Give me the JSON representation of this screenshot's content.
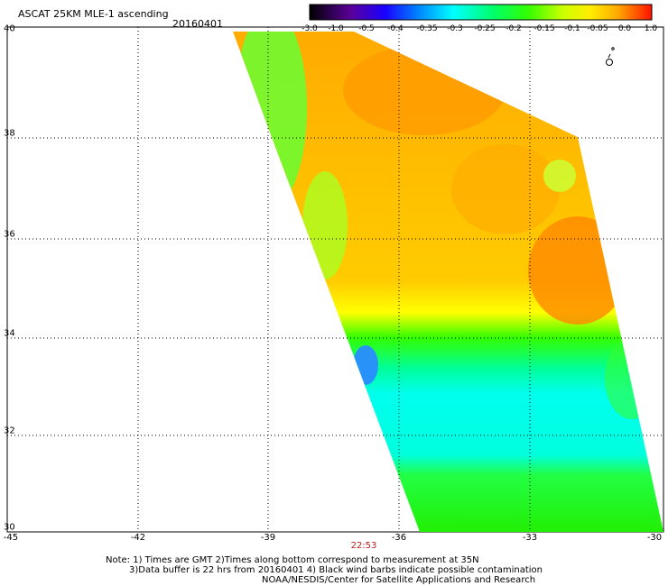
{
  "header": {
    "title": "ASCAT 25KM MLE-1 ascending",
    "date": "20160401"
  },
  "colorbar": {
    "labels": [
      "-3.0",
      "-1.0",
      "-0.5",
      "-0.4",
      "-0.35",
      "-0.3",
      "-0.25",
      "-0.2",
      "-0.15",
      "-0.1",
      "-0.05",
      "0.0",
      "1.0"
    ],
    "colors": [
      "#2a0033",
      "#4a0088",
      "#2200ff",
      "#0066ff",
      "#00b0ff",
      "#00ffff",
      "#00ffaa",
      "#00ff00",
      "#99ff00",
      "#ffff00",
      "#ffaa00",
      "#ff5500",
      "#ff0000"
    ]
  },
  "axes": {
    "x_ticks": [
      "-45",
      "-42",
      "-39",
      "-36",
      "-33",
      "-30"
    ],
    "y_ticks": [
      "40",
      "38",
      "36",
      "34",
      "32",
      "30"
    ],
    "pass_time": "22:53"
  },
  "footer": {
    "line1": "Note: 1) Times are GMT 2)Times along bottom correspond to measurement at 35N",
    "line2": "3)Data buffer is 22 hrs from 20160401 4) Black wind barbs indicate possible contamination",
    "line3": "NOAA/NESDIS/Center for Satellite Applications and Research"
  },
  "map": {
    "swath_colors": {
      "orange": "#ff9900",
      "yellow": "#ffdd00",
      "green": "#44ee22",
      "cyan": "#00ffee",
      "blue": "#2a8cff"
    }
  }
}
